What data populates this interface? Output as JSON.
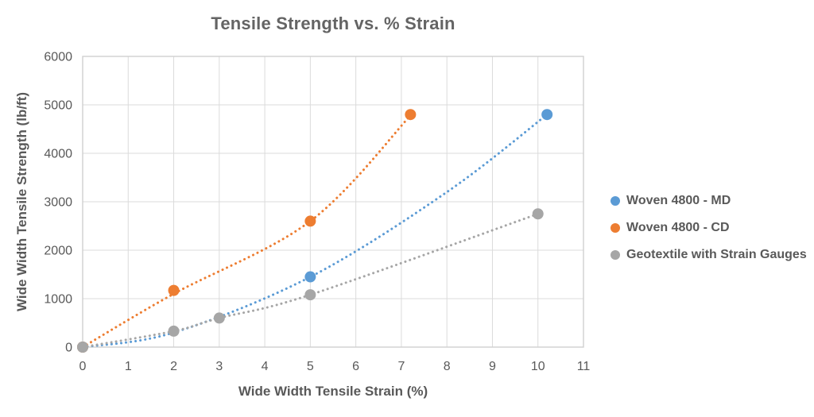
{
  "chart_data": {
    "type": "scatter",
    "title": "Tensile Strength vs. % Strain",
    "xlabel": "Wide Width Tensile Strain (%)",
    "ylabel": "Wide Width Tensile Strength (lb/ft)",
    "xlim": [
      0,
      11
    ],
    "ylim": [
      0,
      6000
    ],
    "xticks": [
      0,
      1,
      2,
      3,
      4,
      5,
      6,
      7,
      8,
      9,
      10,
      11
    ],
    "yticks": [
      0,
      1000,
      2000,
      3000,
      4000,
      5000,
      6000
    ],
    "grid": true,
    "legend_position": "right",
    "line_style": "dotted",
    "colors": {
      "gridline": "#DBDBDB",
      "plot_border": "#CFCFCF",
      "tick_text": "#595959",
      "title_text": "#646464"
    },
    "series": [
      {
        "name": "Woven 4800 - MD",
        "color": "#5B9BD5",
        "points": [
          [
            0,
            0
          ],
          [
            5,
            1450
          ],
          [
            10.2,
            4800
          ]
        ],
        "trend": [
          [
            0,
            0
          ],
          [
            2,
            300
          ],
          [
            5,
            1450
          ],
          [
            8,
            3200
          ],
          [
            10.2,
            4800
          ]
        ]
      },
      {
        "name": "Woven 4800 - CD",
        "color": "#ED7D31",
        "points": [
          [
            0,
            0
          ],
          [
            2,
            1170
          ],
          [
            5,
            2600
          ],
          [
            7.2,
            4800
          ]
        ],
        "trend": [
          [
            0,
            0
          ],
          [
            2,
            1100
          ],
          [
            5,
            2600
          ],
          [
            7.2,
            4780
          ]
        ]
      },
      {
        "name": "Geotextile with Strain Gauges",
        "color": "#A6A6A6",
        "points": [
          [
            0,
            0
          ],
          [
            2,
            330
          ],
          [
            3,
            600
          ],
          [
            5,
            1080
          ],
          [
            10,
            2750
          ]
        ],
        "trend": [
          [
            0,
            0
          ],
          [
            2,
            330
          ],
          [
            3,
            600
          ],
          [
            5,
            1080
          ],
          [
            10,
            2750
          ]
        ]
      }
    ]
  }
}
